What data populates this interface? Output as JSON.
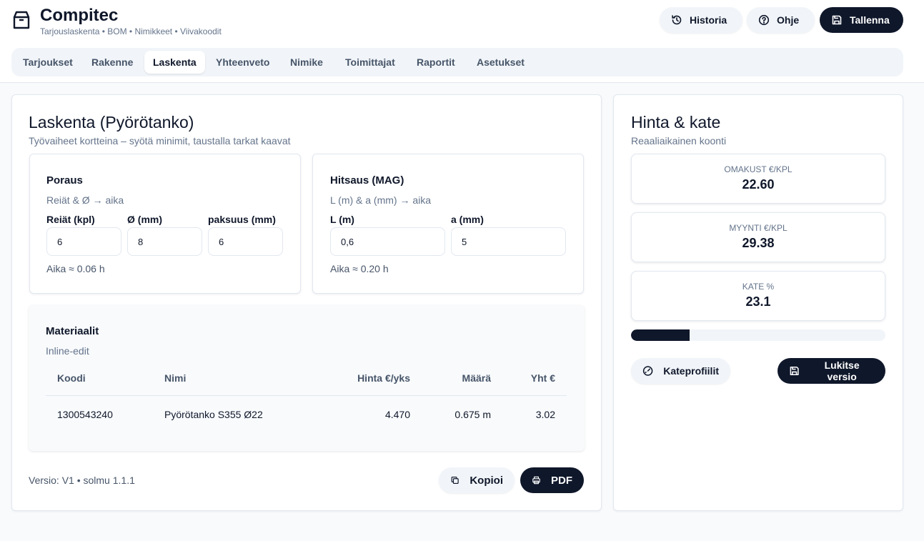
{
  "app": {
    "title": "Compitec",
    "subtitle": "Tarjouslaskenta • BOM • Nimikkeet • Viivakoodit"
  },
  "header_actions": {
    "history": "Historia",
    "help": "Ohje",
    "save": "Tallenna"
  },
  "tabs": [
    {
      "label": "Tarjoukset"
    },
    {
      "label": "Rakenne"
    },
    {
      "label": "Laskenta"
    },
    {
      "label": "Yhteenveto"
    },
    {
      "label": "Nimike"
    },
    {
      "label": "Toimittajat"
    },
    {
      "label": "Raportit"
    },
    {
      "label": "Asetukset"
    }
  ],
  "active_tab": "Laskenta",
  "calc": {
    "title": "Laskenta (Pyörötanko)",
    "subtitle": "Työvaiheet kortteina – syötä minimit, taustalla tarkat kaavat",
    "drilling": {
      "title": "Poraus",
      "hint": "Reiät & Ø → aika",
      "fields": [
        {
          "label": "Reiät (kpl)",
          "value": "6"
        },
        {
          "label": "Ø (mm)",
          "value": "8"
        },
        {
          "label": "paksuus (mm)",
          "value": "6"
        }
      ],
      "time": "Aika ≈ 0.06 h"
    },
    "welding": {
      "title": "Hitsaus (MAG)",
      "hint": "L (m) & a (mm) → aika",
      "fields": [
        {
          "label": "L (m)",
          "value": "0,6"
        },
        {
          "label": "a (mm)",
          "value": "5"
        }
      ],
      "time": "Aika ≈ 0.20 h"
    },
    "materials": {
      "title": "Materiaalit",
      "hint": "Inline-edit",
      "columns": [
        "Koodi",
        "Nimi",
        "Hinta €/yks",
        "Määrä",
        "Yht €"
      ],
      "rows": [
        {
          "code": "1300543240",
          "name": "Pyörötanko S355 Ø22",
          "price": "4.470",
          "qty": "0.675 m",
          "total": "3.02"
        }
      ]
    },
    "version": "Versio: V1 • solmu 1.1.1",
    "copy_label": "Kopioi",
    "pdf_label": "PDF"
  },
  "pricing": {
    "title": "Hinta & kate",
    "subtitle": "Reaaliaikainen koonti",
    "cost_label": "OMAKUST €/KPL",
    "cost_value": "22.60",
    "sale_label": "MYYNTI €/KPL",
    "sale_value": "29.38",
    "margin_label": "KATE %",
    "margin_value": "23.1",
    "margin_fraction": 0.231,
    "profiles_label": "Kateprofiilit",
    "lock_label": "Lukitse versio"
  },
  "colors": {
    "primary": "#0f172a",
    "muted": "#64748b",
    "surface": "#f1f5f9"
  },
  "icons": {
    "brand": "box-icon",
    "history": "history-icon",
    "help": "help-circle-icon",
    "save": "save-icon",
    "copy": "copy-icon",
    "pdf": "printer-icon",
    "profiles": "gauge-icon",
    "lock": "save-icon"
  }
}
